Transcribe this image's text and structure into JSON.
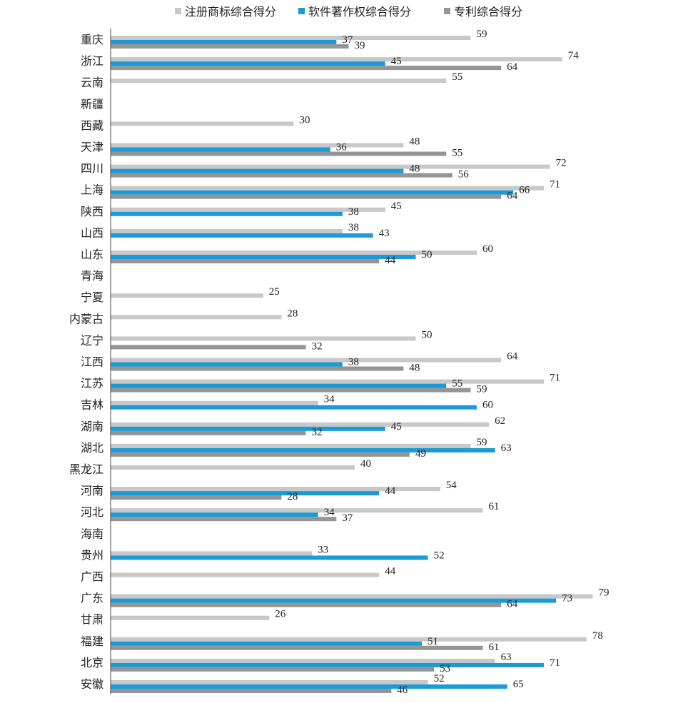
{
  "chart_data": {
    "type": "bar",
    "orientation": "horizontal",
    "legend_position": "top",
    "grid": false,
    "xlim": [
      0,
      80
    ],
    "categories": [
      "重庆",
      "浙江",
      "云南",
      "新疆",
      "西藏",
      "天津",
      "四川",
      "上海",
      "陕西",
      "山西",
      "山东",
      "青海",
      "宁夏",
      "内蒙古",
      "辽宁",
      "江西",
      "江苏",
      "吉林",
      "湖南",
      "湖北",
      "黑龙江",
      "河南",
      "河北",
      "海南",
      "贵州",
      "广西",
      "广东",
      "甘肃",
      "福建",
      "北京",
      "安徽"
    ],
    "series": [
      {
        "name": "注册商标综合得分",
        "color": "#c8c8c8",
        "values": [
          59,
          74,
          55,
          null,
          30,
          48,
          72,
          71,
          45,
          38,
          60,
          null,
          25,
          28,
          50,
          64,
          71,
          34,
          62,
          59,
          40,
          54,
          61,
          null,
          33,
          44,
          79,
          26,
          78,
          63,
          52
        ]
      },
      {
        "name": "软件著作权综合得分",
        "color": "#1a9ad6",
        "values": [
          37,
          45,
          null,
          null,
          null,
          36,
          48,
          66,
          38,
          43,
          50,
          null,
          null,
          null,
          null,
          38,
          55,
          60,
          45,
          63,
          null,
          44,
          34,
          null,
          52,
          null,
          73,
          null,
          51,
          71,
          65
        ]
      },
      {
        "name": "专利综合得分",
        "color": "#959595",
        "values": [
          39,
          64,
          null,
          null,
          null,
          55,
          56,
          64,
          null,
          null,
          44,
          null,
          null,
          null,
          32,
          48,
          59,
          null,
          32,
          49,
          null,
          28,
          37,
          null,
          null,
          null,
          64,
          null,
          61,
          53,
          46
        ]
      }
    ]
  }
}
